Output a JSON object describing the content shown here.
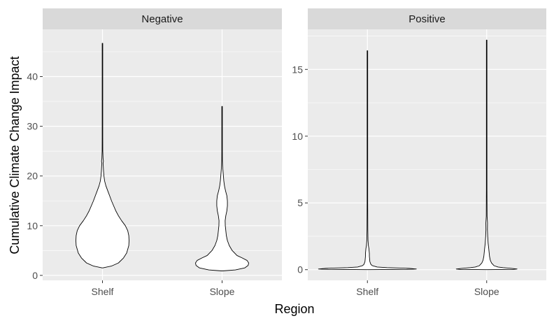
{
  "chart_data": {
    "type": "violin",
    "xlabel": "Region",
    "ylabel": "Cumulative Climate Change Impact",
    "categories": [
      "Shelf",
      "Slope"
    ],
    "colors": {
      "panel_bg": "#ebebeb",
      "strip_bg": "#d9d9d9",
      "grid": "#ffffff",
      "violin_fill": "#ffffff",
      "violin_stroke": "#000000"
    },
    "grid": true,
    "facets": [
      {
        "label": "Negative",
        "ylim": [
          -1,
          49.5
        ],
        "yticks": [
          0,
          10,
          20,
          30,
          40
        ],
        "violins": [
          {
            "category": "Shelf",
            "min": 1.5,
            "max": 46.7,
            "profile": [
              [
                1.5,
                0.0
              ],
              [
                1.9,
                0.35
              ],
              [
                2.5,
                0.6
              ],
              [
                3.5,
                0.79
              ],
              [
                4.5,
                0.91
              ],
              [
                6,
                0.99
              ],
              [
                7,
                1.0
              ],
              [
                8,
                0.99
              ],
              [
                9,
                0.95
              ],
              [
                10,
                0.86
              ],
              [
                11,
                0.72
              ],
              [
                12,
                0.6
              ],
              [
                13,
                0.5
              ],
              [
                14,
                0.42
              ],
              [
                15,
                0.34
              ],
              [
                16,
                0.27
              ],
              [
                17,
                0.2
              ],
              [
                18,
                0.13
              ],
              [
                19,
                0.08
              ],
              [
                20,
                0.055
              ],
              [
                21,
                0.04
              ],
              [
                22,
                0.03
              ],
              [
                22.5,
                0.022
              ],
              [
                23,
                0.035
              ],
              [
                23.5,
                0.022
              ],
              [
                25,
                0.012
              ],
              [
                28,
                0.008
              ],
              [
                35,
                0.005
              ],
              [
                43,
                0.005
              ],
              [
                44,
                0.008
              ],
              [
                46,
                0.004
              ],
              [
                46.7,
                0.0
              ]
            ]
          },
          {
            "category": "Slope",
            "min": 0.9,
            "max": 34,
            "profile": [
              [
                0.9,
                0.0
              ],
              [
                1.1,
                0.5
              ],
              [
                1.5,
                0.85
              ],
              [
                2,
                0.98
              ],
              [
                2.5,
                1.0
              ],
              [
                3,
                0.94
              ],
              [
                3.5,
                0.76
              ],
              [
                4,
                0.56
              ],
              [
                5,
                0.38
              ],
              [
                6,
                0.27
              ],
              [
                7,
                0.2
              ],
              [
                8,
                0.16
              ],
              [
                9,
                0.14
              ],
              [
                10,
                0.12
              ],
              [
                11,
                0.115
              ],
              [
                12,
                0.14
              ],
              [
                13,
                0.18
              ],
              [
                14,
                0.2
              ],
              [
                15,
                0.2
              ],
              [
                16,
                0.18
              ],
              [
                17,
                0.13
              ],
              [
                18,
                0.09
              ],
              [
                19,
                0.065
              ],
              [
                20,
                0.05
              ],
              [
                21,
                0.035
              ],
              [
                22,
                0.02
              ],
              [
                23,
                0.012
              ],
              [
                25,
                0.006
              ],
              [
                30,
                0.004
              ],
              [
                34,
                0.0
              ]
            ]
          }
        ]
      },
      {
        "label": "Positive",
        "ylim": [
          -0.8,
          18
        ],
        "yticks": [
          0,
          5,
          10,
          15
        ],
        "violins": [
          {
            "category": "Shelf",
            "min": 0,
            "max": 16.4,
            "profile": [
              [
                0,
                0.0
              ],
              [
                0.02,
                0.8
              ],
              [
                0.05,
                1.0
              ],
              [
                0.1,
                0.85
              ],
              [
                0.15,
                0.4
              ],
              [
                0.2,
                0.2
              ],
              [
                0.3,
                0.1
              ],
              [
                0.4,
                0.07
              ],
              [
                0.6,
                0.05
              ],
              [
                0.8,
                0.045
              ],
              [
                1.0,
                0.04
              ],
              [
                1.2,
                0.04
              ],
              [
                1.4,
                0.035
              ],
              [
                1.6,
                0.03
              ],
              [
                1.8,
                0.02
              ],
              [
                2.2,
                0.012
              ],
              [
                3.0,
                0.008
              ],
              [
                5,
                0.004
              ],
              [
                10,
                0.003
              ],
              [
                16.4,
                0.0
              ]
            ]
          },
          {
            "category": "Slope",
            "min": 0,
            "max": 17.2,
            "profile": [
              [
                0,
                0.0
              ],
              [
                0.02,
                0.65
              ],
              [
                0.05,
                0.75
              ],
              [
                0.1,
                0.6
              ],
              [
                0.15,
                0.4
              ],
              [
                0.2,
                0.28
              ],
              [
                0.3,
                0.18
              ],
              [
                0.5,
                0.12
              ],
              [
                0.7,
                0.09
              ],
              [
                1.0,
                0.07
              ],
              [
                1.3,
                0.06
              ],
              [
                1.6,
                0.05
              ],
              [
                2.0,
                0.035
              ],
              [
                2.5,
                0.025
              ],
              [
                3.0,
                0.018
              ],
              [
                3.5,
                0.02
              ],
              [
                4.0,
                0.01
              ],
              [
                6,
                0.004
              ],
              [
                10,
                0.003
              ],
              [
                17.2,
                0.0
              ]
            ]
          }
        ]
      }
    ]
  }
}
